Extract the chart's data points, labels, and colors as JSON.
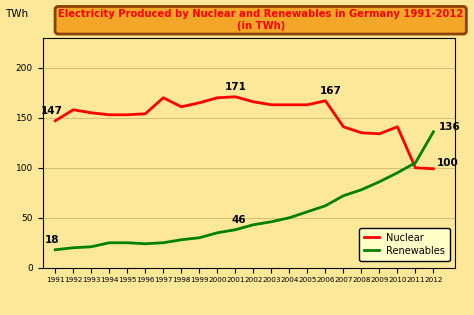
{
  "years": [
    1991,
    1992,
    1993,
    1994,
    1995,
    1996,
    1997,
    1998,
    1999,
    2000,
    2001,
    2002,
    2003,
    2004,
    2005,
    2006,
    2007,
    2008,
    2009,
    2010,
    2011,
    2012
  ],
  "nuclear": [
    147,
    158,
    155,
    153,
    153,
    154,
    170,
    161,
    165,
    170,
    171,
    166,
    163,
    163,
    163,
    167,
    141,
    135,
    134,
    141,
    100,
    99
  ],
  "renewables": [
    18,
    20,
    21,
    25,
    25,
    24,
    25,
    28,
    30,
    35,
    38,
    43,
    46,
    50,
    56,
    62,
    72,
    78,
    86,
    95,
    105,
    136
  ],
  "nuclear_color": "#ff0000",
  "renewables_color": "#008000",
  "background_color": "#fce898",
  "plot_bg_color": "#fce898",
  "title_line1": "Electricity Produced by Nuclear and Renewables in Germany 1991-2012",
  "title_line2": "(in TWh)",
  "title_box_bg": "#f4a628",
  "title_box_edge": "#8b4000",
  "ylabel": "TWh",
  "ylim": [
    0,
    230
  ],
  "yticks": [
    0,
    50,
    100,
    150,
    200
  ],
  "line_width": 2.0,
  "annot_fontsize": 7.5
}
